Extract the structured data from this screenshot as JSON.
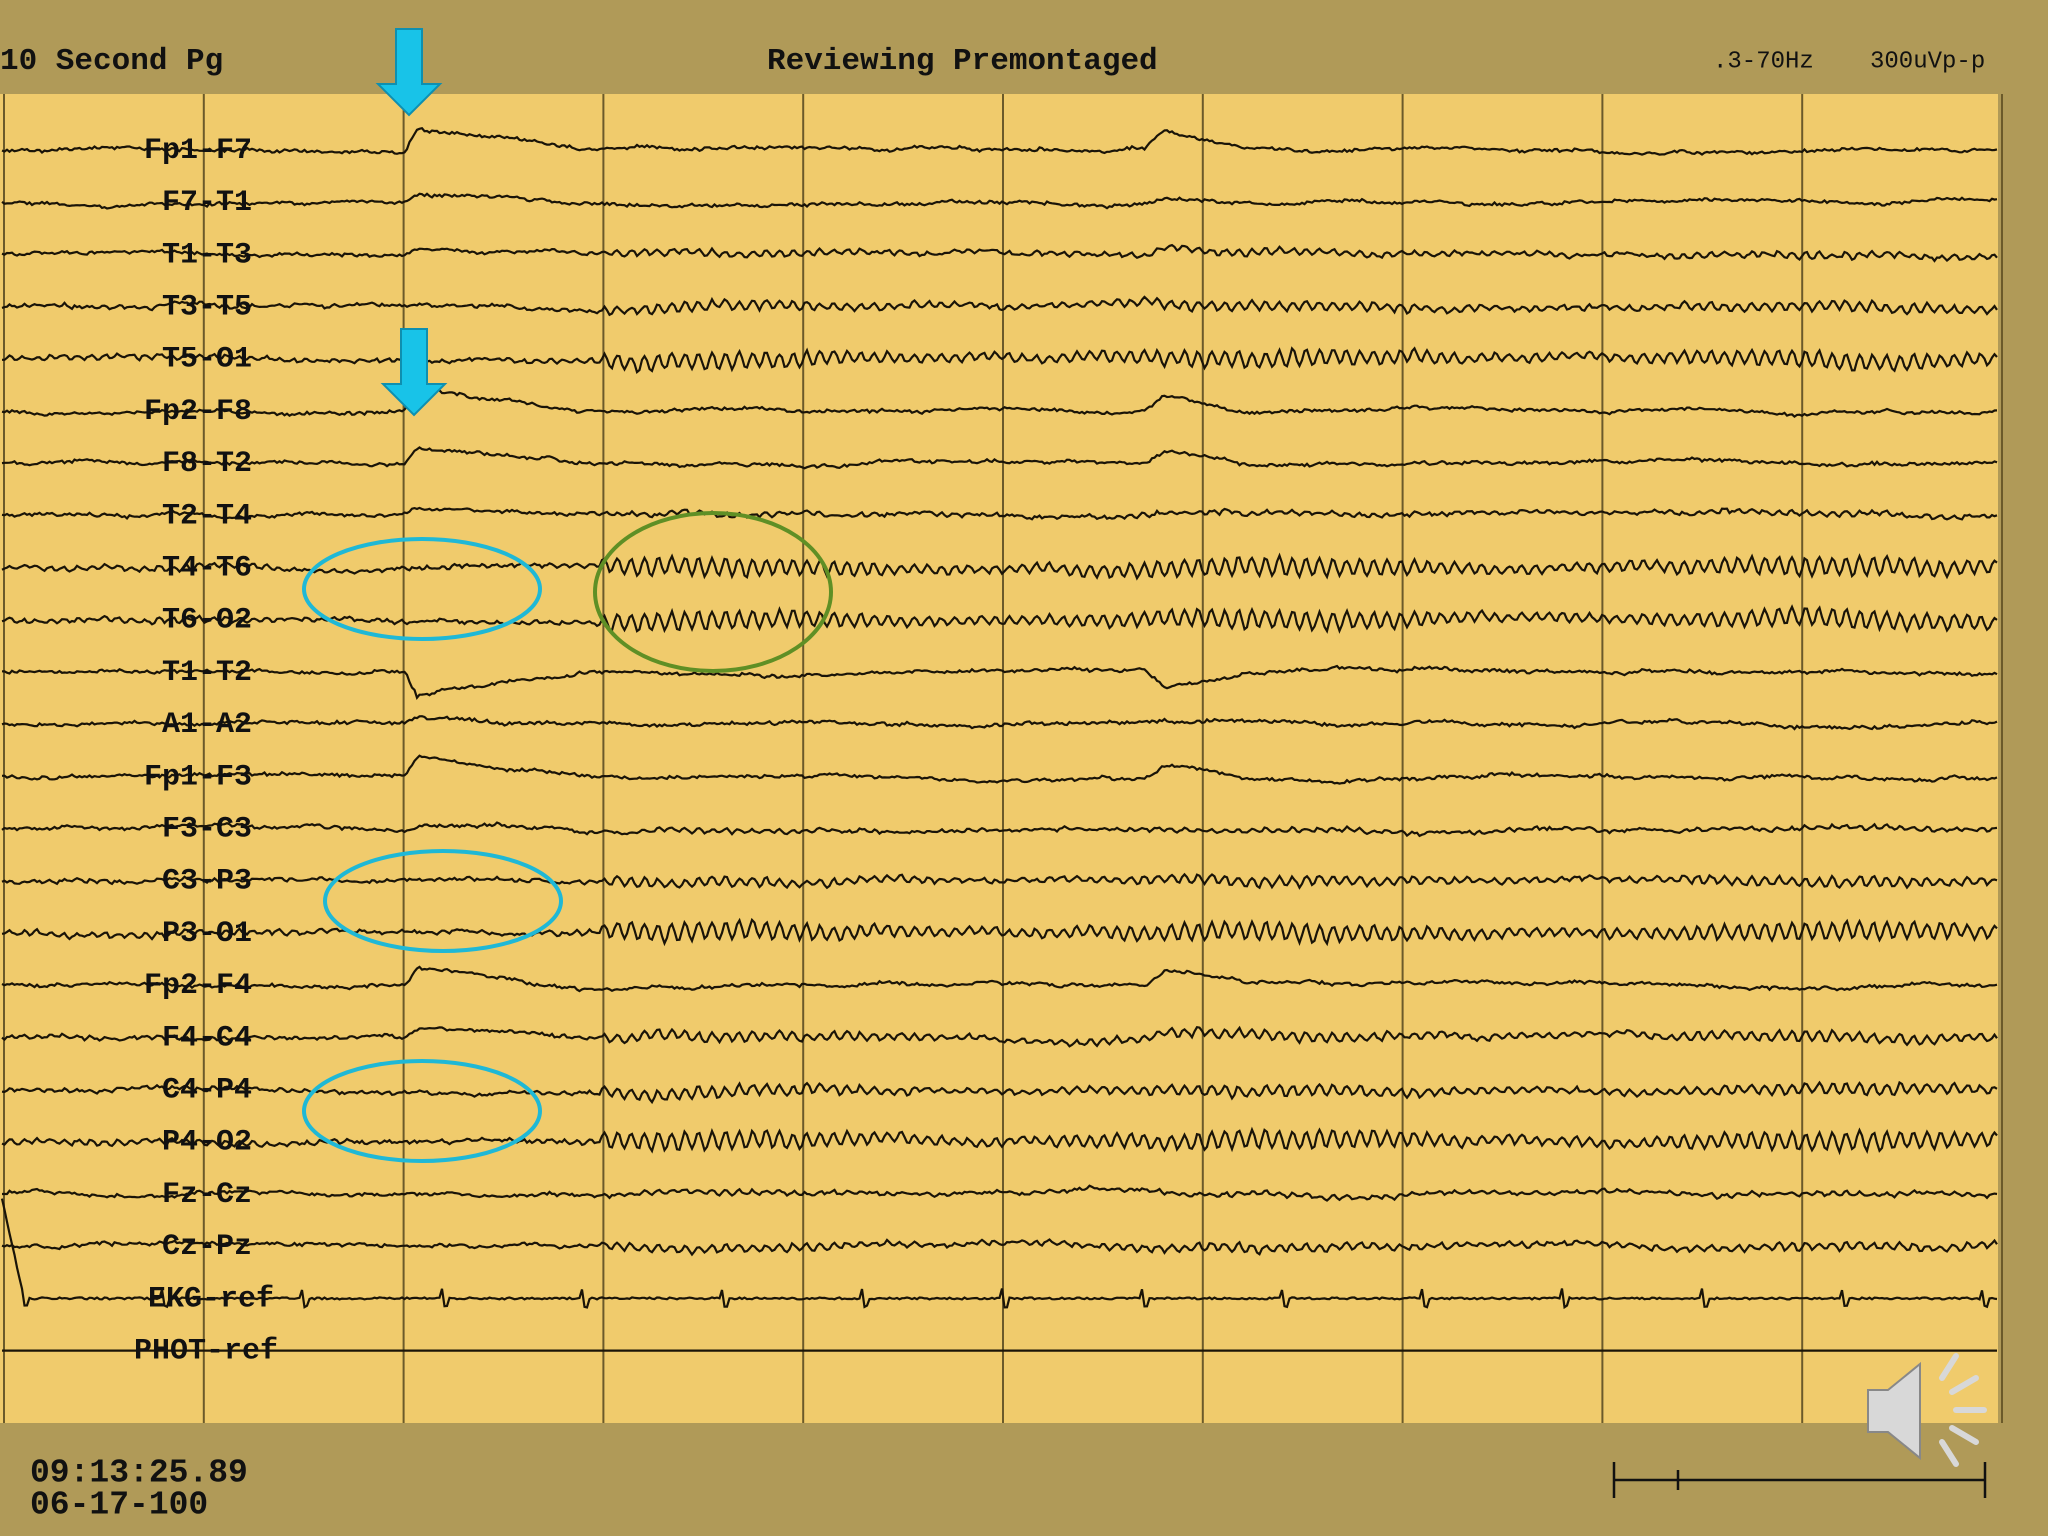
{
  "header": {
    "page": "10 Second Pg",
    "mode": "Reviewing Premontaged",
    "filter": ".3-70Hz",
    "sensitivity": "300uVp-p"
  },
  "channels": [
    "Fp1-F7",
    "F7-T1",
    "T1-T3",
    "T3-T5",
    "T5-O1",
    "Fp2-F8",
    "F8-T2",
    "T2-T4",
    "T4-T6",
    "T6-O2",
    "T1-T2",
    "A1-A2",
    "Fp1-F3",
    "F3-C3",
    "C3-P3",
    "P3-O1",
    "Fp2-F4",
    "F4-C4",
    "C4-P4",
    "P4-O2",
    "Fz-Cz",
    "Cz-Pz",
    "EKG-ref",
    "PHOT-ref"
  ],
  "footer": {
    "time": "09:13:25.89",
    "date": "06-17-100"
  }
}
